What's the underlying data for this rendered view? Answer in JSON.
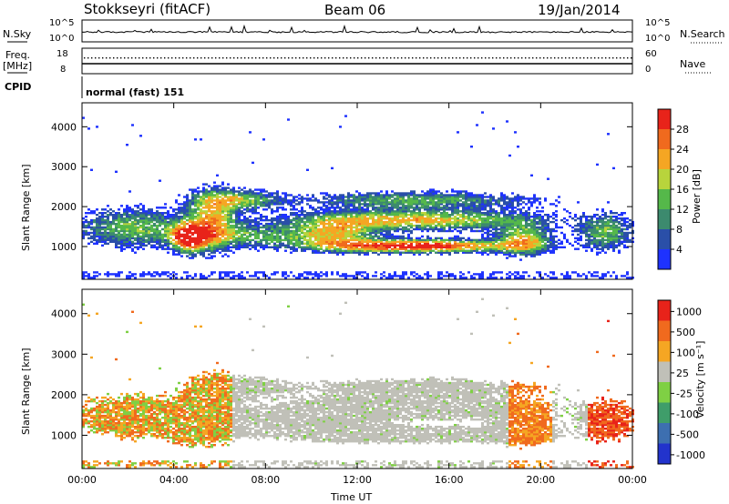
{
  "header": {
    "station": "Stokkseyri (fitACF)",
    "beam": "Beam 06",
    "date": "19/Jan/2014"
  },
  "nsky_panel": {
    "left_label": "N.Sky",
    "right_label": "N.Search",
    "left_ticks": [
      "10^5",
      "10^0"
    ],
    "right_ticks": [
      "10^5",
      "10^0"
    ]
  },
  "freq_panel": {
    "left_label_line1": "Freq.",
    "left_label_line2": "[MHz]",
    "right_label": "Nave",
    "left_ticks": [
      "18",
      "8"
    ],
    "right_ticks": [
      "60",
      "0"
    ]
  },
  "cpid_panel": {
    "label": "CPID",
    "program": "normal (fast) 151"
  },
  "chart_data": [
    {
      "type": "heatmap",
      "title": "",
      "ylabel": "Slant Range [km]",
      "xlabel": "",
      "ylim": [
        180,
        4600
      ],
      "y_ticks": [
        "1000",
        "2000",
        "3000",
        "4000"
      ],
      "colorbar": {
        "label": "Power [dB]",
        "ticks": [
          "4",
          "8",
          "12",
          "16",
          "20",
          "24",
          "28"
        ],
        "colors": [
          "#1e32ff",
          "#2a4fa8",
          "#3c8a6e",
          "#55b84a",
          "#b8d43c",
          "#f5a623",
          "#f06a1e",
          "#e8231a"
        ]
      }
    },
    {
      "type": "heatmap",
      "title": "",
      "ylabel": "Slant Range [km]",
      "xlabel": "Time UT",
      "ylim": [
        180,
        4600
      ],
      "y_ticks": [
        "1000",
        "2000",
        "3000",
        "4000"
      ],
      "x_ticks": [
        "00:00",
        "04:00",
        "08:00",
        "12:00",
        "16:00",
        "20:00",
        "00:00"
      ],
      "colorbar": {
        "label": "Velocity [m s⁻¹]",
        "ticks": [
          "1000",
          "500",
          "100",
          "25",
          "-25",
          "-100",
          "-500",
          "-1000"
        ],
        "colors": [
          "#2233cc",
          "#3d6fb0",
          "#3f9d6a",
          "#7fd044",
          "#c0c0b8",
          "#f5a623",
          "#f06a1e",
          "#e8231a"
        ]
      }
    }
  ]
}
